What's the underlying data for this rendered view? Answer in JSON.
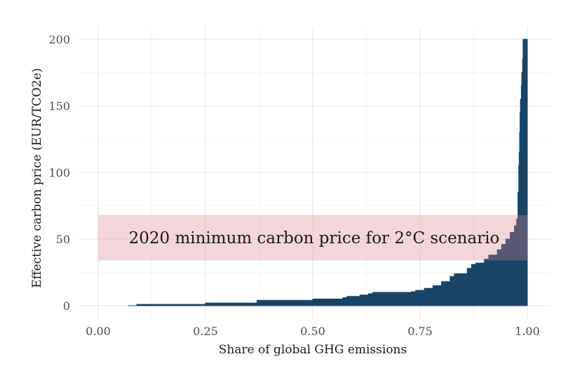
{
  "chart_data": {
    "type": "area",
    "title": "",
    "xlabel": "Share of global GHG emissions",
    "ylabel": "Effective carbon price (EUR/TCO2e)",
    "xlim": [
      0,
      1
    ],
    "ylim": [
      0,
      200
    ],
    "x_ticks": [
      "0.00",
      "0.25",
      "0.50",
      "0.75",
      "1.00"
    ],
    "y_ticks": [
      "0",
      "50",
      "100",
      "150",
      "200"
    ],
    "grid": true,
    "legend": "none",
    "series": [
      {
        "color": "#1a4466",
        "x": [
          0.07,
          0.09,
          0.25,
          0.25,
          0.37,
          0.37,
          0.5,
          0.5,
          0.57,
          0.57,
          0.58,
          0.58,
          0.61,
          0.61,
          0.63,
          0.63,
          0.64,
          0.64,
          0.73,
          0.74,
          0.76,
          0.76,
          0.78,
          0.78,
          0.8,
          0.8,
          0.82,
          0.82,
          0.83,
          0.83,
          0.86,
          0.86,
          0.87,
          0.87,
          0.88,
          0.9,
          0.9,
          0.91,
          0.91,
          0.93,
          0.93,
          0.94,
          0.94,
          0.95,
          0.96,
          0.96,
          0.97,
          0.97,
          0.975,
          0.975,
          0.978,
          0.978,
          0.98,
          0.981,
          0.982,
          0.983,
          0.984,
          0.986,
          0.987,
          0.989,
          0.99,
          0.99,
          1.0
        ],
        "y": [
          0,
          1,
          1.5,
          2,
          3.5,
          4,
          4.5,
          5,
          5,
          6,
          6,
          7,
          7,
          8,
          8,
          9,
          9.5,
          10,
          10.5,
          11.5,
          12,
          13,
          14,
          15,
          16,
          18,
          19,
          22,
          23,
          24,
          25,
          28,
          29,
          31,
          32,
          33,
          35,
          36,
          38,
          40,
          42,
          44,
          46,
          50,
          52,
          55,
          57,
          60,
          62,
          65,
          70,
          85,
          105,
          115,
          130,
          145,
          155,
          165,
          175,
          185,
          195,
          200,
          200
        ]
      }
    ],
    "band": {
      "label": "2020 minimum carbon price for 2°C scenario",
      "y_min": 34,
      "y_max": 68,
      "x_min": 0,
      "x_max": 1,
      "color": "#d9848c"
    }
  }
}
